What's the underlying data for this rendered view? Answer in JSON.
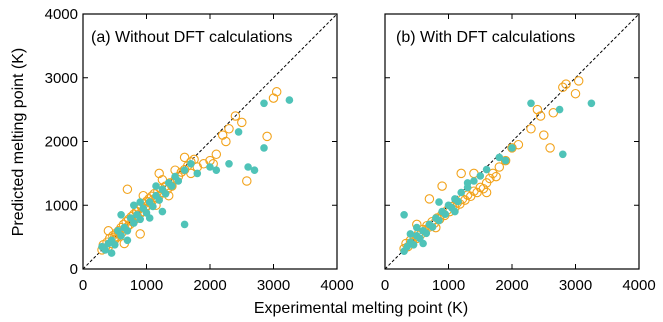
{
  "chart_data": [
    {
      "type": "scatter",
      "title": "(a) Without DFT calculations",
      "xlabel": "Experimental melting point (K)",
      "ylabel": "Predicted melting point (K)",
      "xlim": [
        0,
        4000
      ],
      "ylim": [
        0,
        4000
      ],
      "xticks": [
        "0",
        "1000",
        "2000",
        "3000",
        "4000"
      ],
      "yticks": [
        "0",
        "1000",
        "2000",
        "3000",
        "4000"
      ],
      "diagonal": "dashed y=x reference line",
      "series": [
        {
          "marker": "open-circle",
          "color": "#f2a31c",
          "points": [
            [
              300,
              300
            ],
            [
              320,
              380
            ],
            [
              350,
              330
            ],
            [
              380,
              420
            ],
            [
              400,
              350
            ],
            [
              420,
              480
            ],
            [
              450,
              400
            ],
            [
              470,
              520
            ],
            [
              500,
              460
            ],
            [
              520,
              560
            ],
            [
              540,
              500
            ],
            [
              560,
              600
            ],
            [
              580,
              540
            ],
            [
              600,
              650
            ],
            [
              620,
              580
            ],
            [
              640,
              700
            ],
            [
              660,
              630
            ],
            [
              680,
              740
            ],
            [
              700,
              660
            ],
            [
              720,
              780
            ],
            [
              740,
              700
            ],
            [
              760,
              820
            ],
            [
              780,
              740
            ],
            [
              800,
              860
            ],
            [
              820,
              780
            ],
            [
              840,
              900
            ],
            [
              860,
              820
            ],
            [
              880,
              940
            ],
            [
              900,
              870
            ],
            [
              920,
              980
            ],
            [
              940,
              900
            ],
            [
              960,
              1020
            ],
            [
              980,
              950
            ],
            [
              1000,
              1060
            ],
            [
              1020,
              1000
            ],
            [
              1040,
              1100
            ],
            [
              1060,
              1040
            ],
            [
              1080,
              1140
            ],
            [
              1100,
              1080
            ],
            [
              1120,
              1180
            ],
            [
              1150,
              1120
            ],
            [
              1180,
              1220
            ],
            [
              1200,
              1150
            ],
            [
              1230,
              1260
            ],
            [
              1260,
              1200
            ],
            [
              1300,
              1300
            ],
            [
              1330,
              1250
            ],
            [
              1370,
              1350
            ],
            [
              1400,
              1300
            ],
            [
              1450,
              1400
            ],
            [
              1500,
              1450
            ],
            [
              1550,
              1520
            ],
            [
              1600,
              1560
            ],
            [
              1650,
              1620
            ],
            [
              1700,
              1680
            ],
            [
              1750,
              1720
            ],
            [
              1800,
              1600
            ],
            [
              1900,
              1650
            ],
            [
              2000,
              1700
            ],
            [
              2100,
              1800
            ],
            [
              2200,
              2100
            ],
            [
              2250,
              2000
            ],
            [
              2300,
              2200
            ],
            [
              2400,
              2400
            ],
            [
              2500,
              2300
            ],
            [
              2580,
              1380
            ],
            [
              2900,
              2080
            ],
            [
              3000,
              2680
            ],
            [
              3050,
              2780
            ],
            [
              700,
              1250
            ],
            [
              900,
              550
            ],
            [
              1200,
              1500
            ],
            [
              1600,
              1750
            ],
            [
              400,
              600
            ],
            [
              500,
              500
            ],
            [
              650,
              400
            ],
            [
              850,
              900
            ],
            [
              950,
              1150
            ],
            [
              1150,
              1000
            ],
            [
              1250,
              1400
            ],
            [
              1350,
              1150
            ],
            [
              1450,
              1550
            ],
            [
              1700,
              1500
            ],
            [
              2050,
              1650
            ]
          ]
        },
        {
          "marker": "filled-circle",
          "color": "#4fc3b8",
          "points": [
            [
              300,
              350
            ],
            [
              350,
              300
            ],
            [
              400,
              400
            ],
            [
              450,
              450
            ],
            [
              500,
              380
            ],
            [
              550,
              600
            ],
            [
              600,
              520
            ],
            [
              650,
              650
            ],
            [
              700,
              600
            ],
            [
              750,
              800
            ],
            [
              800,
              720
            ],
            [
              850,
              850
            ],
            [
              900,
              780
            ],
            [
              950,
              950
            ],
            [
              1000,
              880
            ],
            [
              1050,
              1050
            ],
            [
              1100,
              980
            ],
            [
              1150,
              1150
            ],
            [
              1200,
              1080
            ],
            [
              1250,
              1250
            ],
            [
              1300,
              1180
            ],
            [
              1350,
              1350
            ],
            [
              1400,
              1300
            ],
            [
              1450,
              1450
            ],
            [
              1500,
              1380
            ],
            [
              1600,
              1550
            ],
            [
              1700,
              1650
            ],
            [
              1800,
              1500
            ],
            [
              2000,
              1600
            ],
            [
              2100,
              1550
            ],
            [
              2300,
              1650
            ],
            [
              2450,
              2150
            ],
            [
              2600,
              1600
            ],
            [
              2700,
              1550
            ],
            [
              2850,
              1900
            ],
            [
              2850,
              2600
            ],
            [
              3250,
              2650
            ],
            [
              1600,
              700
            ],
            [
              800,
              1000
            ],
            [
              1150,
              1300
            ],
            [
              600,
              850
            ],
            [
              900,
              1050
            ],
            [
              1050,
              800
            ],
            [
              1250,
              900
            ],
            [
              450,
              250
            ],
            [
              700,
              450
            ]
          ]
        }
      ]
    },
    {
      "type": "scatter",
      "title": "(b) With DFT calculations",
      "xlabel": "Experimental melting point (K)",
      "ylabel": "",
      "xlim": [
        0,
        4000
      ],
      "ylim": [
        0,
        4000
      ],
      "xticks": [
        "0",
        "1000",
        "2000",
        "3000",
        "4000"
      ],
      "yticks": [],
      "diagonal": "dashed y=x reference line",
      "series": [
        {
          "marker": "open-circle",
          "color": "#f2a31c",
          "points": [
            [
              300,
              320
            ],
            [
              330,
              400
            ],
            [
              360,
              350
            ],
            [
              400,
              450
            ],
            [
              430,
              420
            ],
            [
              460,
              500
            ],
            [
              500,
              480
            ],
            [
              530,
              560
            ],
            [
              560,
              540
            ],
            [
              600,
              620
            ],
            [
              630,
              600
            ],
            [
              660,
              680
            ],
            [
              700,
              660
            ],
            [
              740,
              740
            ],
            [
              780,
              720
            ],
            [
              820,
              800
            ],
            [
              860,
              780
            ],
            [
              900,
              860
            ],
            [
              940,
              840
            ],
            [
              980,
              920
            ],
            [
              1020,
              900
            ],
            [
              1060,
              980
            ],
            [
              1100,
              960
            ],
            [
              1140,
              1040
            ],
            [
              1180,
              1020
            ],
            [
              1220,
              1100
            ],
            [
              1260,
              1080
            ],
            [
              1300,
              1160
            ],
            [
              1350,
              1140
            ],
            [
              1400,
              1220
            ],
            [
              1450,
              1200
            ],
            [
              1500,
              1280
            ],
            [
              1550,
              1260
            ],
            [
              1600,
              1350
            ],
            [
              1650,
              1420
            ],
            [
              1700,
              1500
            ],
            [
              1800,
              1600
            ],
            [
              1900,
              1700
            ],
            [
              2000,
              1900
            ],
            [
              2100,
              1950
            ],
            [
              2300,
              2200
            ],
            [
              2400,
              2500
            ],
            [
              2450,
              2400
            ],
            [
              2500,
              2100
            ],
            [
              2600,
              1900
            ],
            [
              2650,
              2450
            ],
            [
              2800,
              2850
            ],
            [
              2850,
              2900
            ],
            [
              3000,
              2750
            ],
            [
              3050,
              2950
            ],
            [
              700,
              1100
            ],
            [
              900,
              1300
            ],
            [
              1200,
              1500
            ],
            [
              1400,
              1500
            ],
            [
              500,
              700
            ],
            [
              800,
              650
            ],
            [
              1600,
              1200
            ],
            [
              1750,
              1450
            ]
          ]
        },
        {
          "marker": "filled-circle",
          "color": "#4fc3b8",
          "points": [
            [
              300,
              280
            ],
            [
              350,
              350
            ],
            [
              400,
              420
            ],
            [
              450,
              380
            ],
            [
              500,
              520
            ],
            [
              550,
              480
            ],
            [
              600,
              600
            ],
            [
              650,
              560
            ],
            [
              700,
              700
            ],
            [
              750,
              660
            ],
            [
              800,
              800
            ],
            [
              850,
              760
            ],
            [
              900,
              900
            ],
            [
              950,
              860
            ],
            [
              1000,
              1000
            ],
            [
              1050,
              960
            ],
            [
              1100,
              1100
            ],
            [
              1150,
              1060
            ],
            [
              1200,
              1200
            ],
            [
              1300,
              1280
            ],
            [
              1400,
              1380
            ],
            [
              1500,
              1460
            ],
            [
              1600,
              1560
            ],
            [
              1800,
              1750
            ],
            [
              2000,
              1900
            ],
            [
              2300,
              2600
            ],
            [
              2750,
              2500
            ],
            [
              2800,
              1800
            ],
            [
              3250,
              2600
            ],
            [
              300,
              850
            ],
            [
              1300,
              1350
            ],
            [
              1900,
              1700
            ],
            [
              600,
              400
            ],
            [
              850,
              1050
            ],
            [
              1100,
              900
            ],
            [
              500,
              650
            ],
            [
              400,
              550
            ]
          ]
        }
      ]
    }
  ]
}
